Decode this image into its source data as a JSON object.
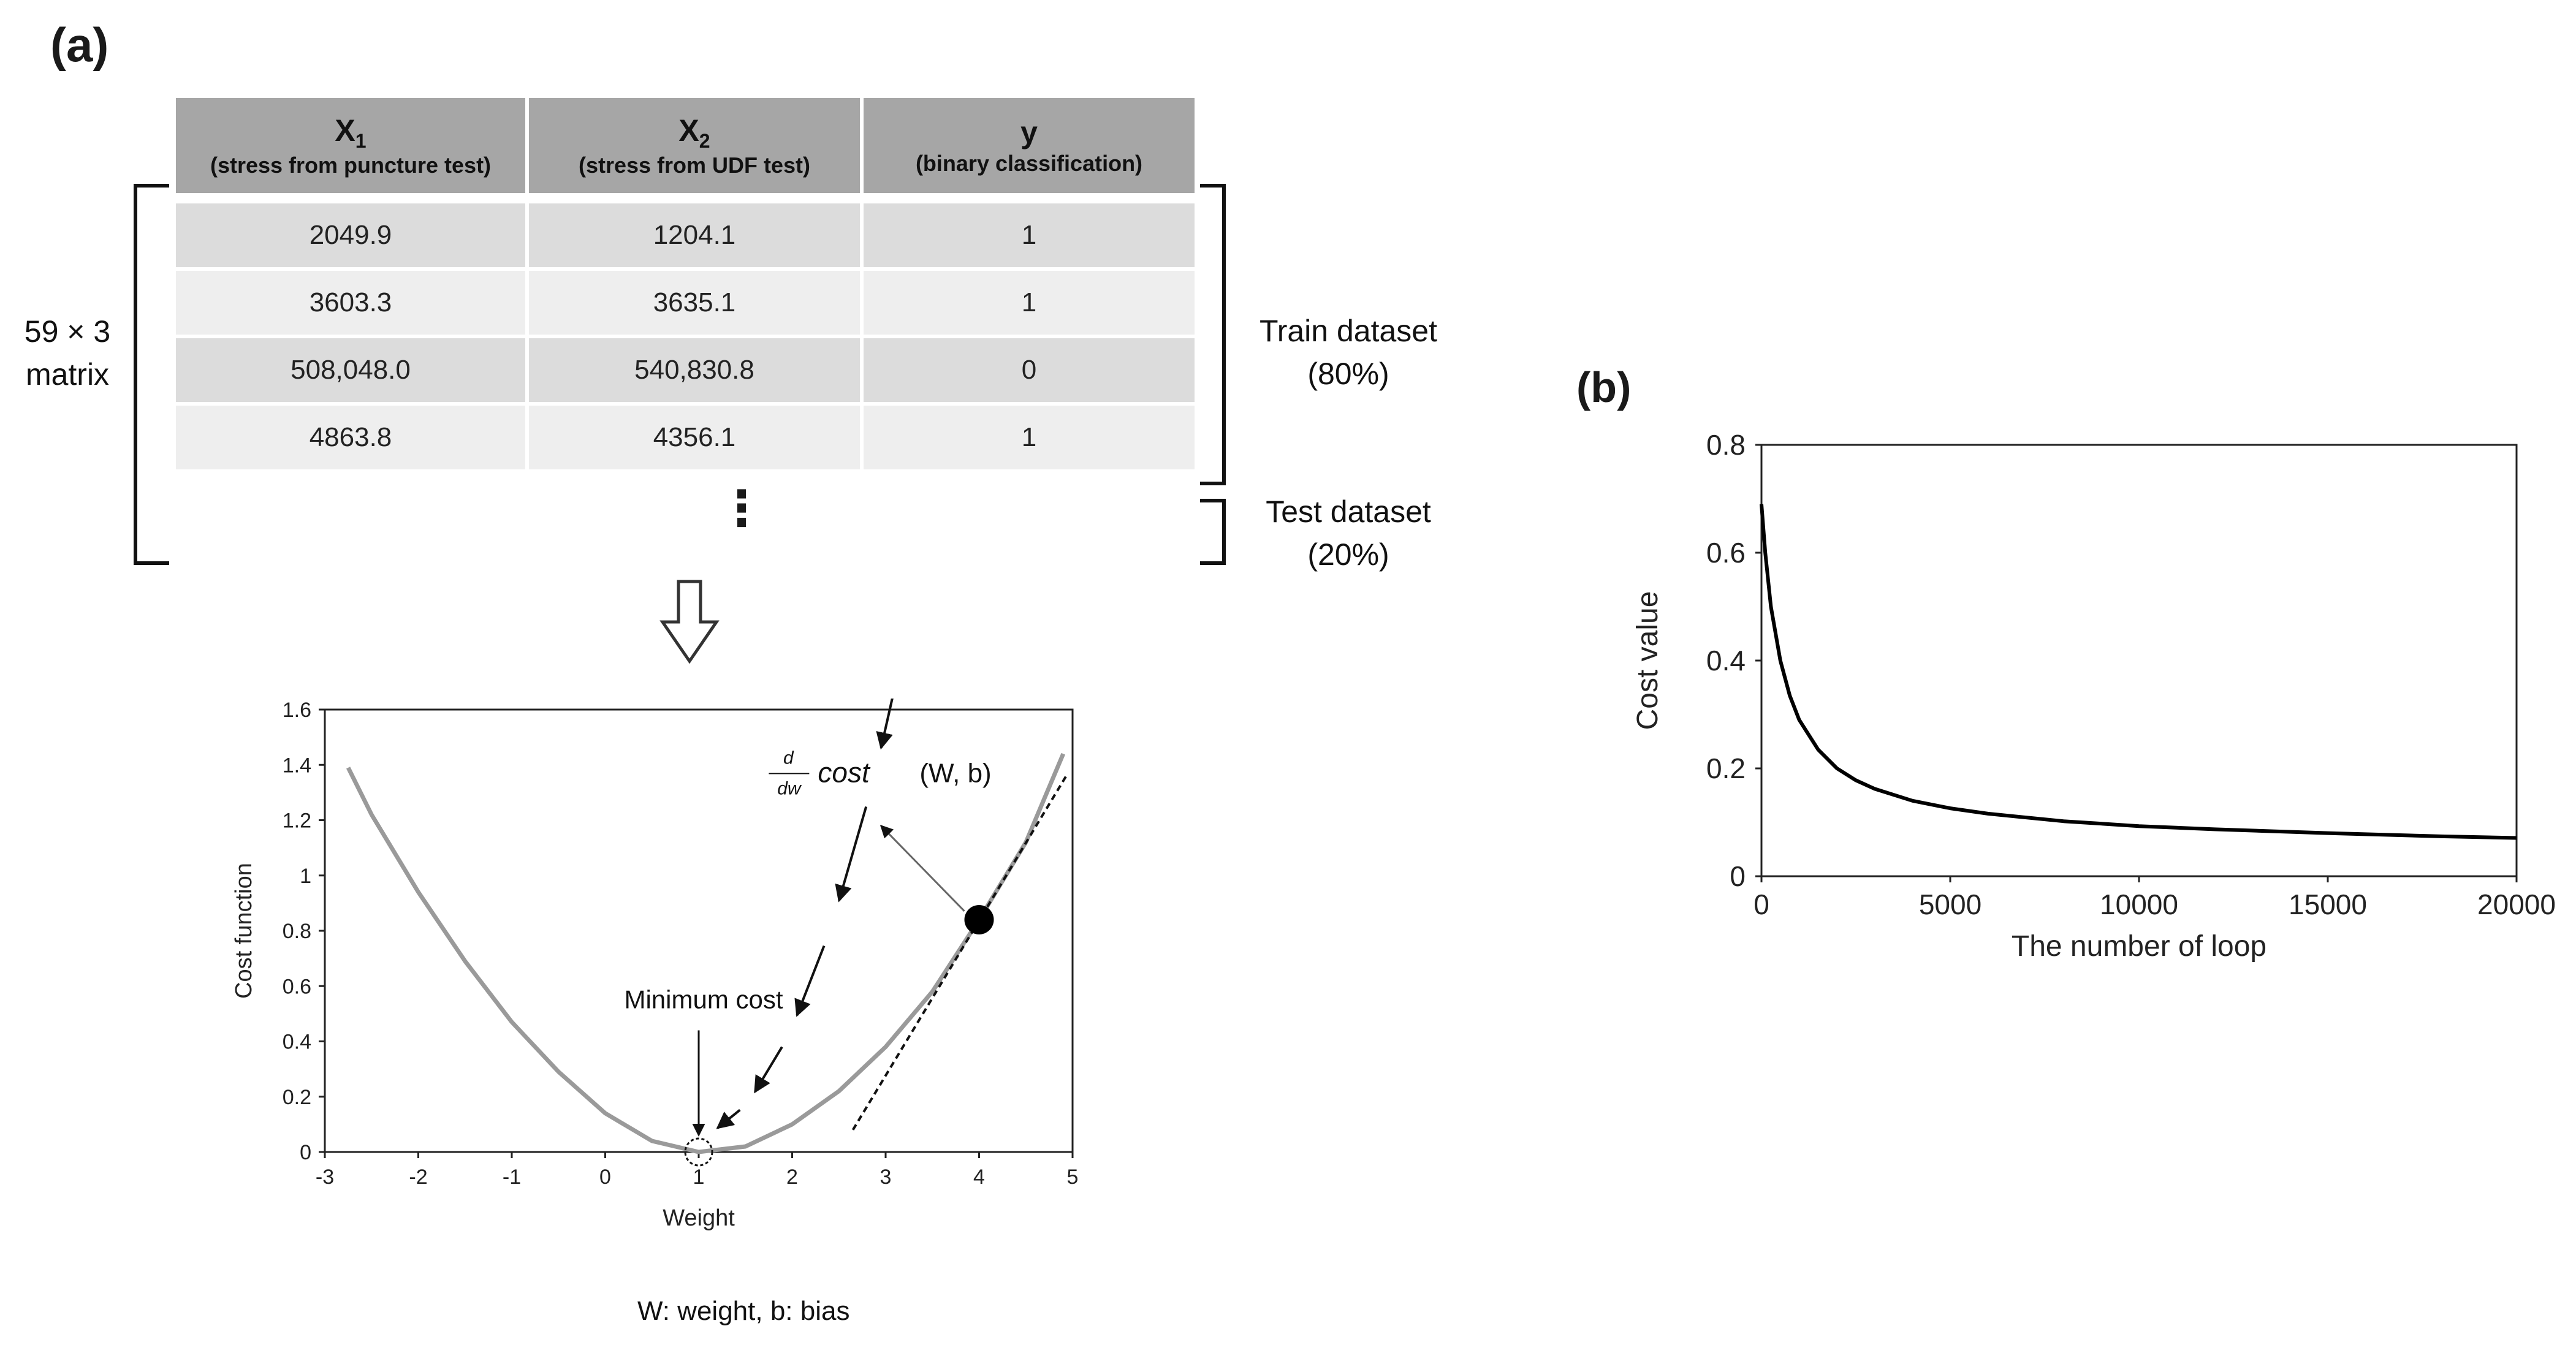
{
  "panel_a": {
    "label": "(a)",
    "table": {
      "headers": [
        {
          "main": "X",
          "subscript": "1",
          "sub": "(stress from puncture test)"
        },
        {
          "main": "X",
          "subscript": "2",
          "sub": "(stress from UDF test)"
        },
        {
          "main": "y",
          "subscript": "",
          "sub": "(binary classification)"
        }
      ],
      "rows": [
        [
          "2049.9",
          "1204.1",
          "1"
        ],
        [
          "3603.3",
          "3635.1",
          "1"
        ],
        [
          "508,048.0",
          "540,830.8",
          "0"
        ],
        [
          "4863.8",
          "4356.1",
          "1"
        ]
      ],
      "ellipsis": "⋮"
    },
    "matrix_label_line1": "59 × 3",
    "matrix_label_line2": "matrix",
    "train_label_line1": "Train dataset",
    "train_label_line2": "(80%)",
    "test_label_line1": "Test dataset",
    "test_label_line2": "(20%)",
    "caption": "W: weight, b: bias",
    "annotation_min": "Minimum cost",
    "annotation_deriv_num": "d",
    "annotation_deriv_den": "dw",
    "annotation_deriv_cost": "cost",
    "annotation_deriv_args": "(W, b)"
  },
  "panel_b": {
    "label": "(b)"
  },
  "chart_data": [
    {
      "type": "line",
      "title": "",
      "xlabel": "Weight",
      "ylabel": "Cost function",
      "xlim": [
        -3,
        5
      ],
      "ylim": [
        0,
        1.6
      ],
      "xticks": [
        -3,
        -2,
        -1,
        0,
        1,
        2,
        3,
        4,
        5
      ],
      "yticks": [
        0,
        0.2,
        0.4,
        0.6,
        0.8,
        1,
        1.2,
        1.4,
        1.6
      ],
      "series": [
        {
          "name": "cost curve",
          "color": "#9a9a9a",
          "x": [
            -2.75,
            -2.5,
            -2,
            -1.5,
            -1,
            -0.5,
            0,
            0.5,
            1,
            1.5,
            2,
            2.5,
            3,
            3.5,
            4,
            4.5,
            4.9
          ],
          "y": [
            1.39,
            1.22,
            0.94,
            0.69,
            0.47,
            0.29,
            0.14,
            0.04,
            0.0,
            0.02,
            0.1,
            0.22,
            0.38,
            0.58,
            0.84,
            1.12,
            1.44
          ]
        }
      ],
      "tangent_line": {
        "x": [
          2.65,
          4.95
        ],
        "y": [
          0.08,
          1.37
        ]
      },
      "current_point": {
        "x": 4.0,
        "y": 0.84
      },
      "minimum_point": {
        "x": 1.0,
        "y": 0.0
      },
      "descent_arrows_x": [
        4.0,
        3.45,
        2.95,
        2.5,
        2.05,
        1.6,
        1.2
      ]
    },
    {
      "type": "line",
      "title": "",
      "xlabel": "The number of loop",
      "ylabel": "Cost value",
      "xlim": [
        0,
        20000
      ],
      "ylim": [
        0,
        0.8
      ],
      "xticks": [
        0,
        5000,
        10000,
        15000,
        20000
      ],
      "yticks": [
        0,
        0.2,
        0.4,
        0.6,
        0.8
      ],
      "series": [
        {
          "name": "cost",
          "color": "#000000",
          "x": [
            0,
            100,
            250,
            500,
            750,
            1000,
            1500,
            2000,
            2500,
            3000,
            4000,
            5000,
            6000,
            8000,
            10000,
            12000,
            15000,
            18000,
            20000
          ],
          "y": [
            0.69,
            0.6,
            0.5,
            0.4,
            0.335,
            0.29,
            0.235,
            0.2,
            0.178,
            0.162,
            0.14,
            0.126,
            0.116,
            0.102,
            0.093,
            0.087,
            0.08,
            0.074,
            0.071
          ]
        }
      ]
    }
  ]
}
